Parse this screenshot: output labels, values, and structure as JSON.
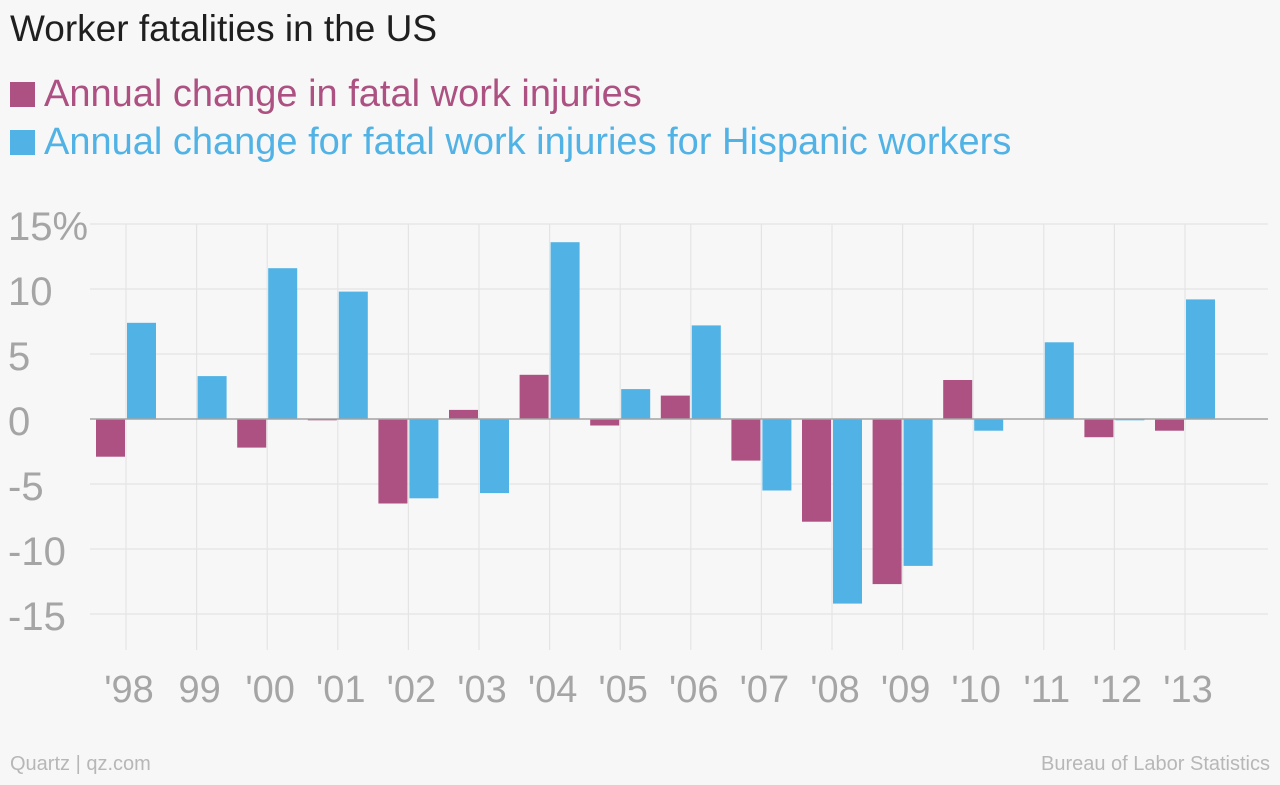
{
  "page": {
    "title": "Worker fatalities in the US",
    "source_left": "Quartz | qz.com",
    "source_right": "Bureau of Labor Statistics"
  },
  "chart_data": {
    "type": "bar",
    "title": "Worker fatalities in the US",
    "categories": [
      "'98",
      "99",
      "'00",
      "'01",
      "'02",
      "'03",
      "'04",
      "'05",
      "'06",
      "'07",
      "'08",
      "'09",
      "'10",
      "'11",
      "'12",
      "'13"
    ],
    "series": [
      {
        "name": "Annual change in fatal work injuries",
        "color": "#ac5181",
        "values": [
          -2.9,
          0.0,
          -2.2,
          -0.1,
          -6.5,
          0.7,
          3.4,
          -0.5,
          1.8,
          -3.2,
          -7.9,
          -12.7,
          3.0,
          0.0,
          -1.4,
          -0.9
        ]
      },
      {
        "name": "Annual change for fatal work injuries for Hispanic workers",
        "color": "#51b2e5",
        "values": [
          7.4,
          3.3,
          11.6,
          9.8,
          -6.1,
          -5.7,
          13.6,
          2.3,
          7.2,
          -5.5,
          -14.2,
          -11.3,
          -0.9,
          5.9,
          -0.1,
          9.2
        ]
      }
    ],
    "ylim": [
      -15,
      15
    ],
    "yticks": [
      15,
      10,
      5,
      0,
      -5,
      -10,
      -15
    ],
    "ytick_labels": [
      "15%",
      "10",
      "5",
      "0",
      "-5",
      "-10",
      "-15"
    ],
    "grid": true,
    "legend": "top-left",
    "xlabel": "",
    "ylabel": ""
  }
}
